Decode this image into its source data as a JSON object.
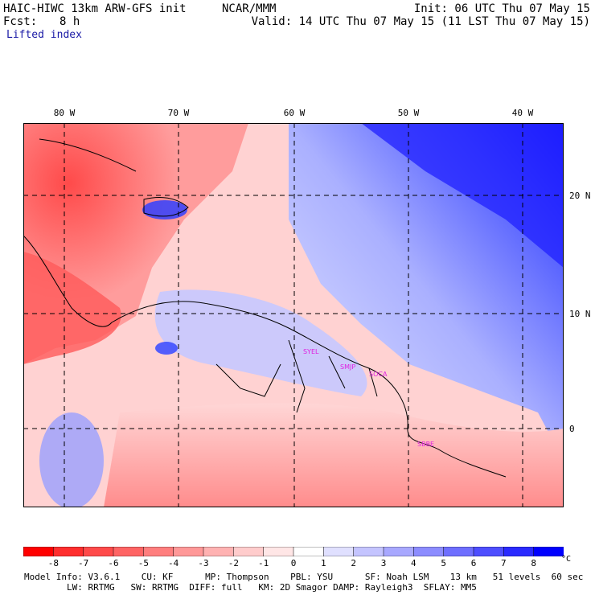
{
  "header": {
    "model_title": "HAIC-HIWC 13km ARW-GFS init",
    "org": "NCAR/MMM",
    "init": "Init: 06 UTC Thu 07 May 15",
    "fcst_label": "Fcst:",
    "fcst_value": "8 h",
    "valid": "Valid: 14 UTC Thu 07 May 15 (11 LST Thu 07 May 15)",
    "field_name": "Lifted index"
  },
  "map": {
    "longitude_labels": [
      "80 W",
      "70 W",
      "60 W",
      "50 W",
      "40 W"
    ],
    "latitude_labels": [
      "20 N",
      "10 N",
      "0"
    ],
    "city_labels": [
      "SYEL",
      "SMJP",
      "SOCA",
      "SBBE"
    ]
  },
  "colorbar": {
    "levels": [
      "-8",
      "-7",
      "-6",
      "-5",
      "-4",
      "-3",
      "-2",
      "-1",
      "0",
      "1",
      "2",
      "3",
      "4",
      "5",
      "6",
      "7",
      "8"
    ],
    "unit": "°C",
    "colors": [
      "#ff0000",
      "#ff2e2e",
      "#ff4a4a",
      "#ff6464",
      "#ff7e7e",
      "#ff9898",
      "#ffb2b2",
      "#ffcccc",
      "#ffe6e6",
      "#ffffff",
      "#e0e0ff",
      "#c4c4ff",
      "#a8a8ff",
      "#8c8cff",
      "#6e6eff",
      "#4e4eff",
      "#2a2aff",
      "#0000ff"
    ]
  },
  "footer": {
    "line1": "Model Info: V3.6.1    CU: KF      MP: Thompson    PBL: YSU      SF: Noah LSM    13 km   51 levels  60 sec",
    "line2": "        LW: RRTMG   SW: RRTMG  DIFF: full   KM: 2D Smagor DAMP: Rayleigh3  SFLAY: MM5"
  }
}
